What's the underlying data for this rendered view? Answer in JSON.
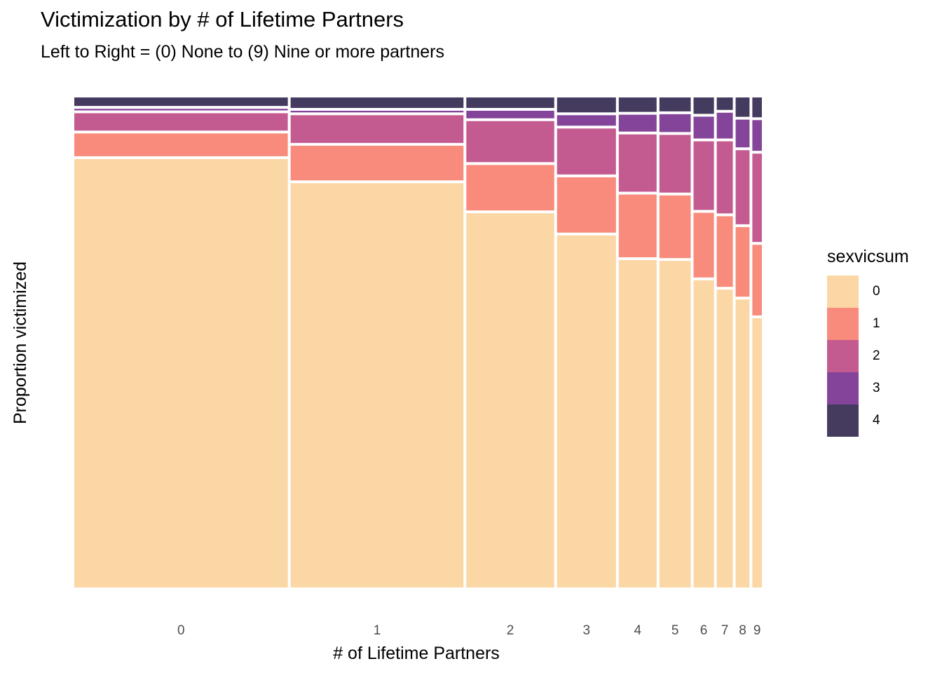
{
  "title": "Victimization by # of Lifetime Partners",
  "subtitle": "Left to Right = (0) None to (9) Nine or more partners",
  "colors": {
    "0": "#FBD7A5",
    "1": "#F88B7B",
    "2": "#C35B91",
    "3": "#84449A",
    "4": "#443B5E",
    "background": "#FFFFFF",
    "gap": "#FFFFFF",
    "axis_text": "#4D4D4D"
  },
  "legend": {
    "title": "sexvicsum",
    "items": [
      "0",
      "1",
      "2",
      "3",
      "4"
    ]
  },
  "chart_data": {
    "type": "mosaic",
    "title": "Victimization by # of Lifetime Partners",
    "subtitle": "Left to Right = (0) None to (9) Nine or more partners",
    "xlabel": "# of Lifetime Partners",
    "ylabel": "Proportion victimized",
    "fill_variable": "sexvicsum",
    "fill_levels": [
      "0",
      "1",
      "2",
      "3",
      "4"
    ],
    "grid": false,
    "legend_position": "right",
    "y_tick_labels": false,
    "categories": [
      "0",
      "1",
      "2",
      "3",
      "4",
      "5",
      "6",
      "7",
      "8",
      "9"
    ],
    "column_widths": [
      0.298,
      0.242,
      0.125,
      0.085,
      0.056,
      0.047,
      0.032,
      0.026,
      0.023,
      0.017
    ],
    "segment_proportions": [
      [
        0.875,
        0.052,
        0.041,
        0.009,
        0.023
      ],
      [
        0.826,
        0.076,
        0.062,
        0.009,
        0.027
      ],
      [
        0.765,
        0.098,
        0.089,
        0.021,
        0.027
      ],
      [
        0.72,
        0.118,
        0.099,
        0.027,
        0.036
      ],
      [
        0.67,
        0.133,
        0.122,
        0.04,
        0.035
      ],
      [
        0.669,
        0.133,
        0.123,
        0.042,
        0.034
      ],
      [
        0.629,
        0.137,
        0.145,
        0.05,
        0.039
      ],
      [
        0.61,
        0.149,
        0.152,
        0.058,
        0.031
      ],
      [
        0.59,
        0.147,
        0.156,
        0.062,
        0.045
      ],
      [
        0.552,
        0.149,
        0.185,
        0.068,
        0.046
      ]
    ]
  }
}
